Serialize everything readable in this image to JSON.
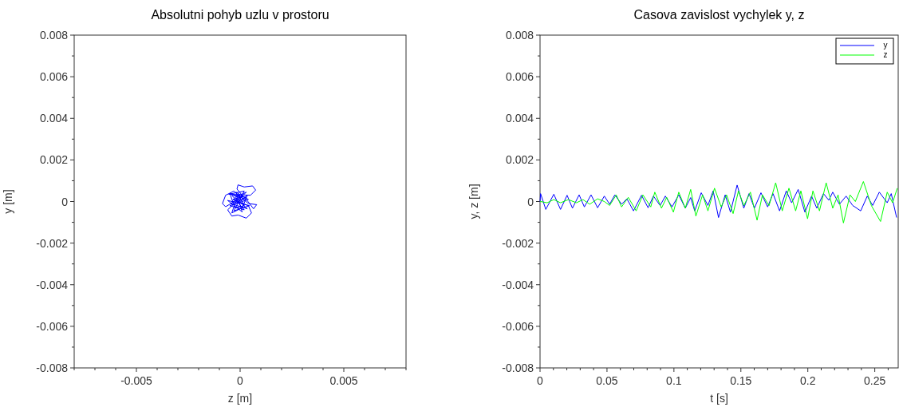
{
  "chart_data": [
    {
      "type": "line",
      "title": "Absolutni pohyb uzlu v prostoru",
      "xlabel": "z [m]",
      "ylabel": "y [m]",
      "xlim": [
        -0.008,
        0.008
      ],
      "ylim": [
        -0.008,
        0.008
      ],
      "xticks": [
        {
          "value": -0.008,
          "label": null
        },
        {
          "value": -0.007,
          "label": null
        },
        {
          "value": -0.006,
          "label": null
        },
        -0.005,
        {
          "value": -0.004,
          "label": null
        },
        {
          "value": -0.003,
          "label": null
        },
        {
          "value": -0.002,
          "label": null
        },
        {
          "value": -0.001,
          "label": null
        },
        0,
        {
          "value": 0.001,
          "label": null
        },
        {
          "value": 0.002,
          "label": null
        },
        {
          "value": 0.003,
          "label": null
        },
        {
          "value": 0.004,
          "label": null
        },
        0.005,
        {
          "value": 0.006,
          "label": null
        },
        {
          "value": 0.007,
          "label": null
        },
        {
          "value": 0.008,
          "label": null
        }
      ],
      "yticks": [
        -0.008,
        {
          "value": -0.007,
          "label": null
        },
        -0.006,
        {
          "value": -0.005,
          "label": null
        },
        -0.004,
        {
          "value": -0.003,
          "label": null
        },
        -0.002,
        {
          "value": -0.001,
          "label": null
        },
        0,
        {
          "value": 0.001,
          "label": null
        },
        0.002,
        {
          "value": 0.003,
          "label": null
        },
        0.004,
        {
          "value": 0.005,
          "label": null
        },
        0.006,
        {
          "value": 0.007,
          "label": null
        },
        0.008
      ],
      "grid": false,
      "legend": false,
      "marker": "none",
      "line_style": "solid",
      "series": [
        {
          "color": "#0000ff",
          "x": [
            0,
            0.0003,
            -0.0004,
            0.0002,
            -0.0005,
            0.0004,
            -0.0002,
            0.0001,
            -0.0006,
            0.00045,
            -0.0003,
            0.0002,
            -0.00055,
            0.0005,
            0.00075,
            0.0006,
            0.0002,
            -0.0001,
            -0.00015,
            0.0001,
            -0.00045,
            0.00035,
            -0.00025,
            0.0003,
            -0.0006,
            -0.0004,
            -0.0001,
            0.0003,
            0.00055,
            0.0004,
            -0.00035,
            0.00015,
            -0.0007,
            -0.00085,
            -0.0007,
            -0.0003,
            0.0004,
            0.0008,
            0.00065,
            0.0003,
            -0.0005,
            -0.00025,
            0.0002,
            -0.0001,
            -0.0004,
            0.0001,
            0.00035,
            -0.0002,
            5e-05
          ],
          "values": [
            0,
            0.0002,
            0.0003,
            -0.0004,
            -0.0002,
            0.0001,
            0.00045,
            -0.0005,
            5e-05,
            -0.0002,
            -0.00045,
            0.0005,
            0.00035,
            0.0003,
            0.00055,
            0.00075,
            0.0007,
            0.0008,
            0.0006,
            0.0003,
            -0.0001,
            -0.00035,
            0.0002,
            0.00045,
            -0.0004,
            -0.0007,
            -0.00065,
            -0.0008,
            -0.00055,
            -0.0002,
            0.0001,
            0.00025,
            -0.00025,
            -0.0001,
            0.0003,
            0.0005,
            -0.0001,
            -0.00015,
            -0.00035,
            0.0001,
            0.0004,
            -0.0003,
            -0.0002,
            0.00035,
            -0.00055,
            -0.0003,
            0.0003,
            -0.0001,
            0.0001
          ]
        }
      ]
    },
    {
      "type": "line",
      "title": "Casova zavislost vychylek y, z",
      "xlabel": "t [s]",
      "ylabel": "y, z [m]",
      "xlim": [
        0,
        0.2675
      ],
      "ylim": [
        -0.008,
        0.008
      ],
      "xticks": [
        0,
        {
          "value": 0.01,
          "label": null
        },
        {
          "value": 0.02,
          "label": null
        },
        {
          "value": 0.03,
          "label": null
        },
        {
          "value": 0.04,
          "label": null
        },
        0.05,
        {
          "value": 0.06,
          "label": null
        },
        {
          "value": 0.07,
          "label": null
        },
        {
          "value": 0.08,
          "label": null
        },
        {
          "value": 0.09,
          "label": null
        },
        0.1,
        {
          "value": 0.11,
          "label": null
        },
        {
          "value": 0.12,
          "label": null
        },
        {
          "value": 0.13,
          "label": null
        },
        {
          "value": 0.14,
          "label": null
        },
        0.15,
        {
          "value": 0.16,
          "label": null
        },
        {
          "value": 0.17,
          "label": null
        },
        {
          "value": 0.18,
          "label": null
        },
        {
          "value": 0.19,
          "label": null
        },
        0.2,
        {
          "value": 0.21,
          "label": null
        },
        {
          "value": 0.22,
          "label": null
        },
        {
          "value": 0.23,
          "label": null
        },
        {
          "value": 0.24,
          "label": null
        },
        0.25,
        {
          "value": 0.26,
          "label": null
        }
      ],
      "yticks": [
        -0.008,
        {
          "value": -0.007,
          "label": null
        },
        -0.006,
        {
          "value": -0.005,
          "label": null
        },
        -0.004,
        {
          "value": -0.003,
          "label": null
        },
        -0.002,
        {
          "value": -0.001,
          "label": null
        },
        0,
        {
          "value": 0.001,
          "label": null
        },
        0.002,
        {
          "value": 0.003,
          "label": null
        },
        0.004,
        {
          "value": 0.005,
          "label": null
        },
        0.006,
        {
          "value": 0.007,
          "label": null
        },
        0.008
      ],
      "grid": false,
      "legend": "top right",
      "marker": "none",
      "line_style": "solid",
      "series": [
        {
          "name": "y",
          "color": "#0000ff",
          "x": [
            0,
            0.0004,
            0.0043,
            0.0103,
            0.0153,
            0.0202,
            0.0242,
            0.0292,
            0.0331,
            0.0381,
            0.043,
            0.048,
            0.052,
            0.0559,
            0.0609,
            0.0649,
            0.0698,
            0.0758,
            0.0807,
            0.0847,
            0.0897,
            0.0936,
            0.0986,
            0.1036,
            0.1085,
            0.1125,
            0.1155,
            0.1204,
            0.1254,
            0.1293,
            0.1333,
            0.1383,
            0.1422,
            0.1472,
            0.1522,
            0.1561,
            0.1601,
            0.165,
            0.17,
            0.174,
            0.1789,
            0.1839,
            0.1879,
            0.1928,
            0.1978,
            0.2028,
            0.2067,
            0.2117,
            0.2157,
            0.2186,
            0.2236,
            0.2286,
            0.2335,
            0.2395,
            0.2444,
            0.2484,
            0.2534,
            0.2593,
            0.2623,
            0.2663
          ],
          "values": [
            0,
            0.00038,
            -0.00038,
            0.00035,
            -0.00038,
            0.0003,
            -0.00032,
            0.00032,
            -0.00026,
            0.00032,
            -0.0003,
            0.00026,
            -0.00013,
            0.00032,
            -0.00013,
            0.00013,
            -0.00045,
            0.0003,
            -0.0003,
            0.00026,
            -0.00019,
            0.00026,
            -0.00026,
            0.00032,
            -0.00032,
            0.00019,
            -0.00045,
            0.00042,
            -0.00019,
            0.00051,
            -0.00077,
            0.00032,
            -0.00051,
            0.00079,
            -0.00032,
            0.00038,
            -0.00032,
            0.00042,
            -0.00026,
            0.00038,
            -0.00045,
            0.00051,
            -6e-05,
            0.00058,
            -0.00051,
            0.00026,
            -0.00032,
            0.00038,
            6e-05,
            0.00045,
            -0.00013,
            0.00026,
            -0.00019,
            -0.00045,
            0.00026,
            -0.00019,
            0.00045,
            -6e-05,
            0.00038,
            -0.00077
          ]
        },
        {
          "name": "z",
          "color": "#00ff00",
          "x": [
            0,
            0.0004,
            0.0053,
            0.0103,
            0.0153,
            0.0212,
            0.0272,
            0.0321,
            0.0371,
            0.043,
            0.048,
            0.052,
            0.0569,
            0.0609,
            0.0659,
            0.0718,
            0.0768,
            0.0827,
            0.0857,
            0.0907,
            0.0946,
            0.0996,
            0.1036,
            0.1085,
            0.1125,
            0.1164,
            0.1214,
            0.1254,
            0.1303,
            0.1353,
            0.1393,
            0.1442,
            0.1482,
            0.1522,
            0.1571,
            0.1621,
            0.1661,
            0.171,
            0.176,
            0.1809,
            0.1859,
            0.1909,
            0.1948,
            0.1998,
            0.2038,
            0.2087,
            0.2137,
            0.2186,
            0.2226,
            0.2266,
            0.2315,
            0.2355,
            0.2415,
            0.2475,
            0.2543,
            0.2593,
            0.2633,
            0.2668
          ],
          "values": [
            0,
            0,
            -6e-05,
            9e-05,
            -6e-05,
            9e-05,
            -6e-05,
            9e-05,
            -0.00013,
            0.00013,
            0,
            -0.00019,
            0.00032,
            -0.00026,
            0.0002,
            -0.00045,
            0.00032,
            -0.00026,
            0.00045,
            -0.00032,
            0.0002,
            -0.00051,
            0.00045,
            -0.00032,
            0.00058,
            -0.0007,
            0.00032,
            -0.00045,
            0.00064,
            -0.00026,
            0.00032,
            -0.00058,
            0.00051,
            -0.0002,
            0.00045,
            -0.0009,
            0.00032,
            -0.0002,
            0.0009,
            -0.00045,
            0.00064,
            -0.00045,
            0.00051,
            -0.00083,
            0.00051,
            -0.00045,
            0.0009,
            -0.00032,
            0.00032,
            -0.00103,
            0.00032,
            0,
            0.00096,
            -0.0002,
            -0.00096,
            0.00045,
            -6e-05,
            0.00064
          ]
        }
      ]
    }
  ]
}
